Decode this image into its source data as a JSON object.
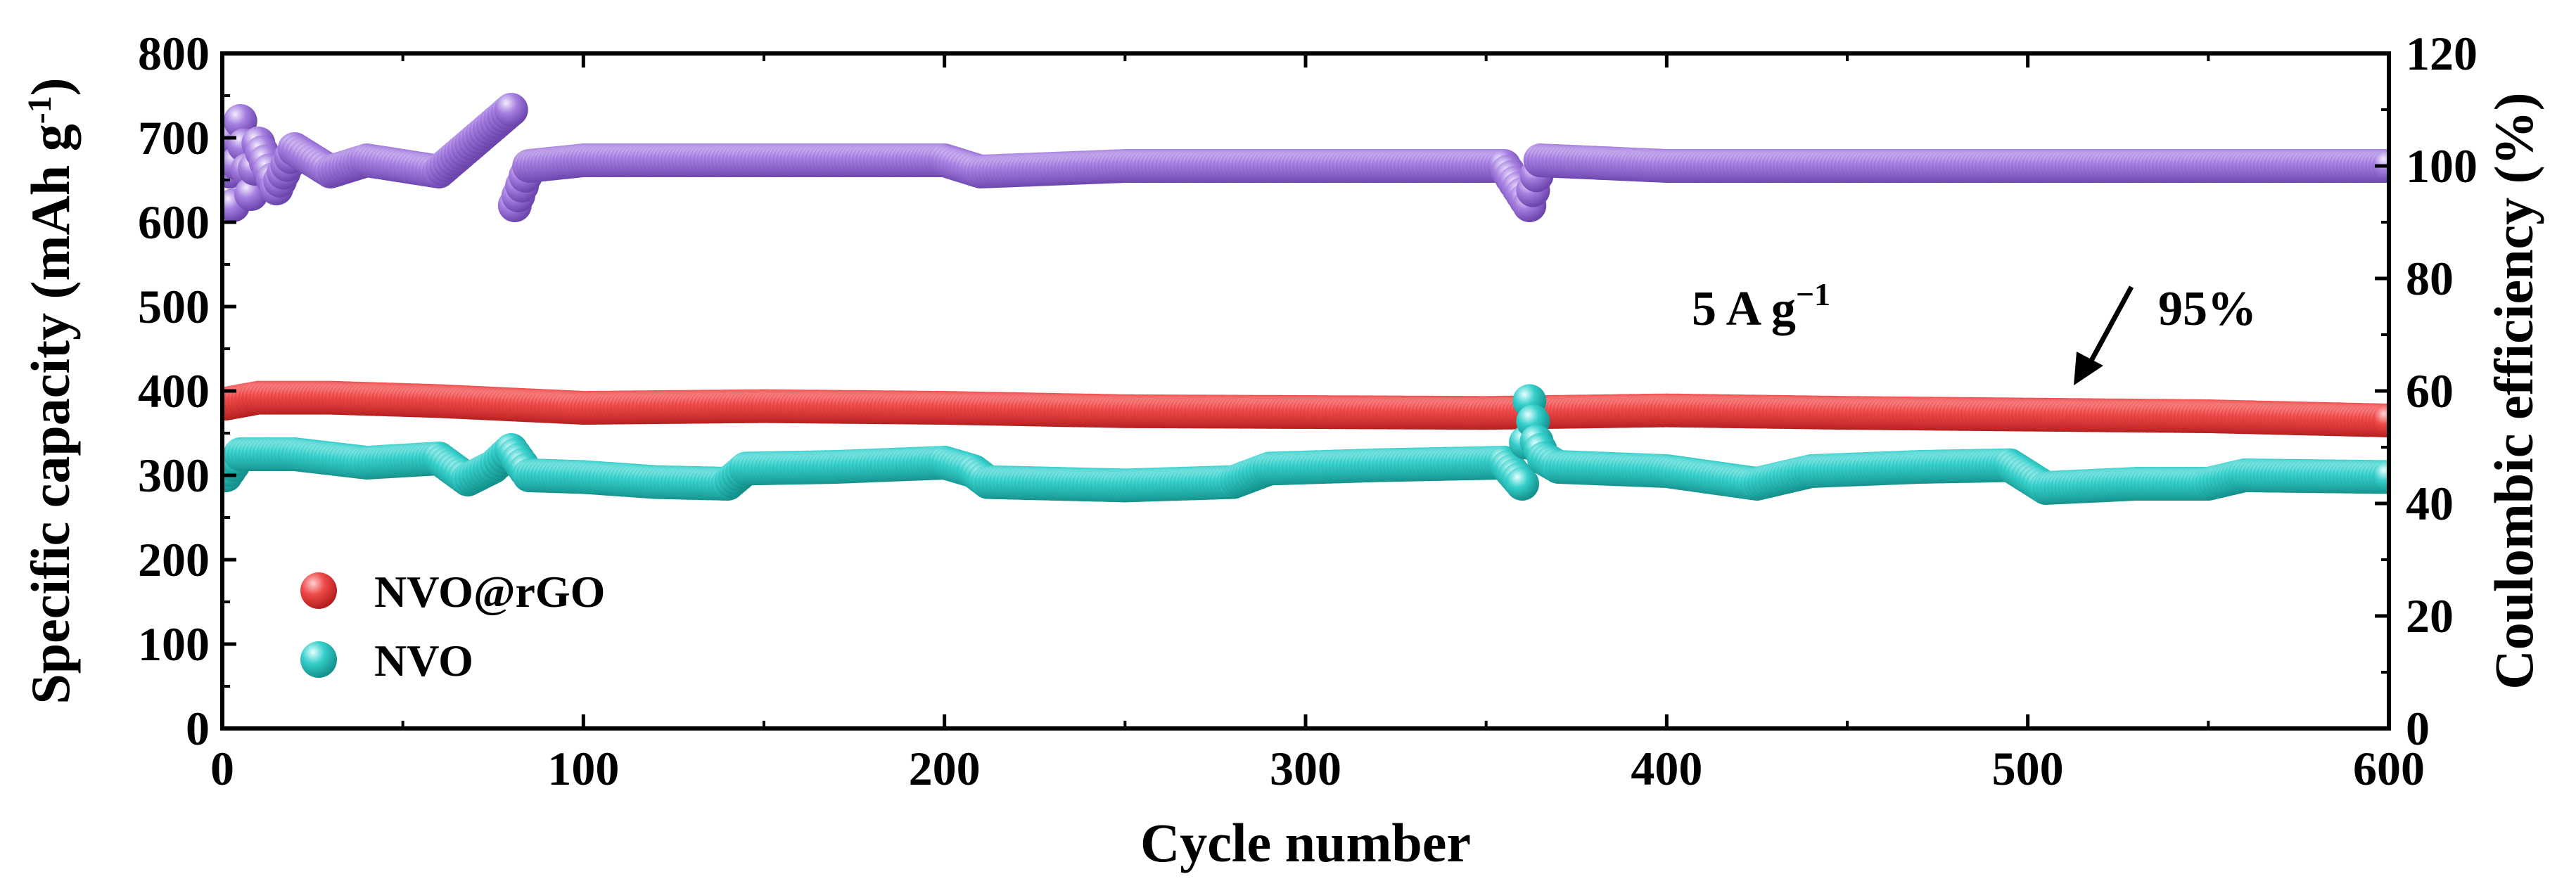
{
  "chart_data": {
    "type": "scatter",
    "xlabel": "Cycle number",
    "ylabel": "Specific capacity (mAh g",
    "ylabel_sup": "-1",
    "ylabel_close": ")",
    "y2label": "Coulombic efficiency (%)",
    "xlim": [
      0,
      600
    ],
    "ylim": [
      0,
      800
    ],
    "y2lim": [
      0,
      120
    ],
    "x_ticks": [
      "0",
      "100",
      "200",
      "300",
      "400",
      "500",
      "600"
    ],
    "y_ticks": [
      "0",
      "100",
      "200",
      "300",
      "400",
      "500",
      "600",
      "700",
      "800"
    ],
    "y2_ticks": [
      "0",
      "20",
      "40",
      "60",
      "80",
      "100",
      "120"
    ],
    "annotations": {
      "current_main": "5 A g",
      "current_sup": "−1",
      "retention": "95%"
    },
    "legend": {
      "position": "lower-left",
      "entries": [
        "NVO@rGO",
        "NVO"
      ]
    },
    "series": [
      {
        "name": "NVO@rGO",
        "axis": "left",
        "color": "#e83a3a",
        "points": [
          [
            1,
            385
          ],
          [
            10,
            392
          ],
          [
            30,
            392
          ],
          [
            60,
            388
          ],
          [
            100,
            380
          ],
          [
            150,
            382
          ],
          [
            200,
            380
          ],
          [
            250,
            376
          ],
          [
            300,
            375
          ],
          [
            350,
            374
          ],
          [
            400,
            377
          ],
          [
            450,
            374
          ],
          [
            500,
            372
          ],
          [
            550,
            370
          ],
          [
            600,
            365
          ]
        ]
      },
      {
        "name": "NVO",
        "axis": "left",
        "color": "#2ec4c0",
        "points": [
          [
            1,
            300
          ],
          [
            5,
            325
          ],
          [
            20,
            325
          ],
          [
            40,
            315
          ],
          [
            60,
            320
          ],
          [
            68,
            295
          ],
          [
            75,
            310
          ],
          [
            80,
            330
          ],
          [
            85,
            300
          ],
          [
            100,
            298
          ],
          [
            120,
            292
          ],
          [
            140,
            290
          ],
          [
            145,
            308
          ],
          [
            170,
            310
          ],
          [
            200,
            315
          ],
          [
            208,
            305
          ],
          [
            212,
            292
          ],
          [
            250,
            288
          ],
          [
            280,
            292
          ],
          [
            290,
            308
          ],
          [
            320,
            312
          ],
          [
            355,
            315
          ],
          [
            360,
            290
          ],
          [
            362,
            388
          ],
          [
            364,
            340
          ],
          [
            366,
            320
          ],
          [
            370,
            310
          ],
          [
            400,
            305
          ],
          [
            425,
            290
          ],
          [
            440,
            305
          ],
          [
            470,
            310
          ],
          [
            495,
            312
          ],
          [
            505,
            285
          ],
          [
            530,
            290
          ],
          [
            550,
            290
          ],
          [
            560,
            300
          ],
          [
            600,
            298
          ]
        ]
      },
      {
        "name": "Coulombic efficiency",
        "axis": "right",
        "color": "#9a6fd8",
        "points": [
          [
            1,
            105
          ],
          [
            3,
            93
          ],
          [
            5,
            108
          ],
          [
            8,
            95
          ],
          [
            10,
            104
          ],
          [
            15,
            96
          ],
          [
            20,
            103
          ],
          [
            30,
            99
          ],
          [
            40,
            101
          ],
          [
            60,
            99
          ],
          [
            80,
            110
          ],
          [
            81,
            93
          ],
          [
            85,
            100
          ],
          [
            100,
            101
          ],
          [
            200,
            101
          ],
          [
            210,
            99
          ],
          [
            250,
            100
          ],
          [
            300,
            100
          ],
          [
            355,
            100
          ],
          [
            362,
            93
          ],
          [
            365,
            101
          ],
          [
            400,
            100
          ],
          [
            500,
            100
          ],
          [
            600,
            100
          ]
        ]
      }
    ]
  }
}
